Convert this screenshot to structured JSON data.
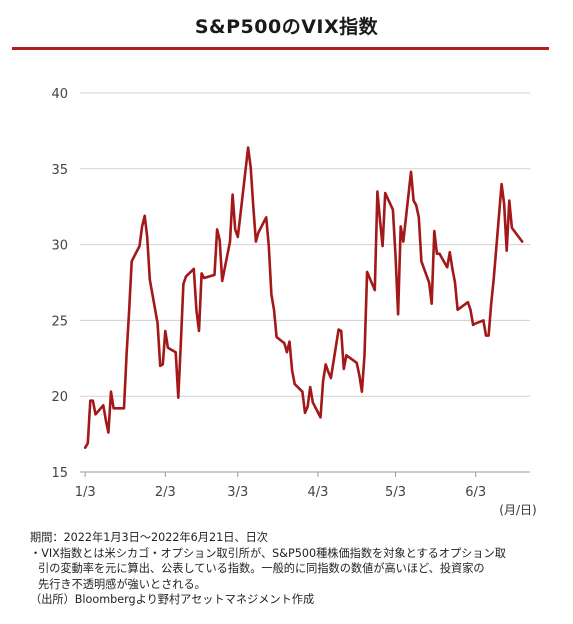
{
  "title": "S&P500のVIX指数",
  "colors": {
    "line": "#a31818",
    "rule": "#b51c1c",
    "grid": "#d0d0d0"
  },
  "chart_data": {
    "type": "line",
    "title": "S&P500のVIX指数",
    "xlabel": "(月/日)",
    "ylabel": "",
    "ylim": [
      15,
      40
    ],
    "yticks": [
      15,
      20,
      25,
      30,
      35,
      40
    ],
    "xlim": [
      "2022-01-01",
      "2022-06-24"
    ],
    "xticks": [
      {
        "date": "2022-01-03",
        "label": "1/3"
      },
      {
        "date": "2022-02-03",
        "label": "2/3"
      },
      {
        "date": "2022-03-03",
        "label": "3/3"
      },
      {
        "date": "2022-04-03",
        "label": "4/3"
      },
      {
        "date": "2022-05-03",
        "label": "5/3"
      },
      {
        "date": "2022-06-03",
        "label": "6/3"
      }
    ],
    "grid": true,
    "series": [
      {
        "points": [
          [
            "2022-01-03",
            16.6
          ],
          [
            "2022-01-04",
            16.9
          ],
          [
            "2022-01-05",
            19.7
          ],
          [
            "2022-01-06",
            19.7
          ],
          [
            "2022-01-07",
            18.8
          ],
          [
            "2022-01-10",
            19.4
          ],
          [
            "2022-01-11",
            18.4
          ],
          [
            "2022-01-12",
            17.6
          ],
          [
            "2022-01-13",
            20.3
          ],
          [
            "2022-01-14",
            19.2
          ],
          [
            "2022-01-18",
            19.2
          ],
          [
            "2022-01-19",
            22.8
          ],
          [
            "2022-01-20",
            25.6
          ],
          [
            "2022-01-21",
            28.9
          ],
          [
            "2022-01-24",
            29.9
          ],
          [
            "2022-01-25",
            31.2
          ],
          [
            "2022-01-26",
            31.9
          ],
          [
            "2022-01-27",
            30.5
          ],
          [
            "2022-01-28",
            27.7
          ],
          [
            "2022-01-31",
            24.8
          ],
          [
            "2022-02-01",
            22.0
          ],
          [
            "2022-02-02",
            22.1
          ],
          [
            "2022-02-03",
            24.3
          ],
          [
            "2022-02-04",
            23.2
          ],
          [
            "2022-02-07",
            22.9
          ],
          [
            "2022-02-08",
            19.9
          ],
          [
            "2022-02-09",
            23.6
          ],
          [
            "2022-02-10",
            27.4
          ],
          [
            "2022-02-11",
            27.9
          ],
          [
            "2022-02-14",
            28.4
          ],
          [
            "2022-02-15",
            25.7
          ],
          [
            "2022-02-16",
            24.3
          ],
          [
            "2022-02-17",
            28.1
          ],
          [
            "2022-02-18",
            27.8
          ],
          [
            "2022-02-22",
            28.0
          ],
          [
            "2022-02-23",
            31.0
          ],
          [
            "2022-02-24",
            30.3
          ],
          [
            "2022-02-25",
            27.6
          ],
          [
            "2022-02-28",
            30.2
          ],
          [
            "2022-03-01",
            33.3
          ],
          [
            "2022-03-02",
            31.0
          ],
          [
            "2022-03-03",
            30.5
          ],
          [
            "2022-03-04",
            31.9
          ],
          [
            "2022-03-07",
            36.4
          ],
          [
            "2022-03-08",
            35.1
          ],
          [
            "2022-03-09",
            32.5
          ],
          [
            "2022-03-10",
            30.2
          ],
          [
            "2022-03-11",
            30.8
          ],
          [
            "2022-03-14",
            31.8
          ],
          [
            "2022-03-15",
            29.9
          ],
          [
            "2022-03-16",
            26.7
          ],
          [
            "2022-03-17",
            25.7
          ],
          [
            "2022-03-18",
            23.9
          ],
          [
            "2022-03-21",
            23.5
          ],
          [
            "2022-03-22",
            22.9
          ],
          [
            "2022-03-23",
            23.6
          ],
          [
            "2022-03-24",
            21.7
          ],
          [
            "2022-03-25",
            20.8
          ],
          [
            "2022-03-28",
            20.3
          ],
          [
            "2022-03-29",
            18.9
          ],
          [
            "2022-03-30",
            19.3
          ],
          [
            "2022-03-31",
            20.6
          ],
          [
            "2022-04-01",
            19.6
          ],
          [
            "2022-04-04",
            18.6
          ],
          [
            "2022-04-05",
            21.0
          ],
          [
            "2022-04-06",
            22.1
          ],
          [
            "2022-04-07",
            21.6
          ],
          [
            "2022-04-08",
            21.2
          ],
          [
            "2022-04-11",
            24.4
          ],
          [
            "2022-04-12",
            24.3
          ],
          [
            "2022-04-13",
            21.8
          ],
          [
            "2022-04-14",
            22.7
          ],
          [
            "2022-04-18",
            22.2
          ],
          [
            "2022-04-19",
            21.4
          ],
          [
            "2022-04-20",
            20.3
          ],
          [
            "2022-04-21",
            22.7
          ],
          [
            "2022-04-22",
            28.2
          ],
          [
            "2022-04-25",
            27.0
          ],
          [
            "2022-04-26",
            33.5
          ],
          [
            "2022-04-27",
            31.6
          ],
          [
            "2022-04-28",
            29.9
          ],
          [
            "2022-04-29",
            33.4
          ],
          [
            "2022-05-02",
            32.3
          ],
          [
            "2022-05-03",
            29.3
          ],
          [
            "2022-05-04",
            25.4
          ],
          [
            "2022-05-05",
            31.2
          ],
          [
            "2022-05-06",
            30.2
          ],
          [
            "2022-05-09",
            34.8
          ],
          [
            "2022-05-10",
            32.9
          ],
          [
            "2022-05-11",
            32.6
          ],
          [
            "2022-05-12",
            31.8
          ],
          [
            "2022-05-13",
            28.9
          ],
          [
            "2022-05-16",
            27.5
          ],
          [
            "2022-05-17",
            26.1
          ],
          [
            "2022-05-18",
            30.9
          ],
          [
            "2022-05-19",
            29.4
          ],
          [
            "2022-05-20",
            29.4
          ],
          [
            "2022-05-23",
            28.5
          ],
          [
            "2022-05-24",
            29.5
          ],
          [
            "2022-05-25",
            28.4
          ],
          [
            "2022-05-26",
            27.5
          ],
          [
            "2022-05-27",
            25.7
          ],
          [
            "2022-05-31",
            26.2
          ],
          [
            "2022-06-01",
            25.7
          ],
          [
            "2022-06-02",
            24.7
          ],
          [
            "2022-06-03",
            24.8
          ],
          [
            "2022-06-06",
            25.0
          ],
          [
            "2022-06-07",
            24.0
          ],
          [
            "2022-06-08",
            24.0
          ],
          [
            "2022-06-09",
            26.1
          ],
          [
            "2022-06-10",
            27.8
          ],
          [
            "2022-06-13",
            34.0
          ],
          [
            "2022-06-14",
            32.7
          ],
          [
            "2022-06-15",
            29.6
          ],
          [
            "2022-06-16",
            32.9
          ],
          [
            "2022-06-17",
            31.1
          ],
          [
            "2022-06-21",
            30.2
          ]
        ]
      }
    ]
  },
  "notes": {
    "period": "期間：2022年1月3日～2022年6月21日、日次",
    "explanation_1": "・VIX指数とは米シカゴ・オプション取引所が、S&P500種株価指数を対象とするオプション取",
    "explanation_2": "引の変動率を元に算出、公表している指数。一般的に同指数の数値が高いほど、投資家の",
    "explanation_3": "先行き不透明感が強いとされる。",
    "source": "（出所）Bloombergより野村アセットマネジメント作成"
  }
}
